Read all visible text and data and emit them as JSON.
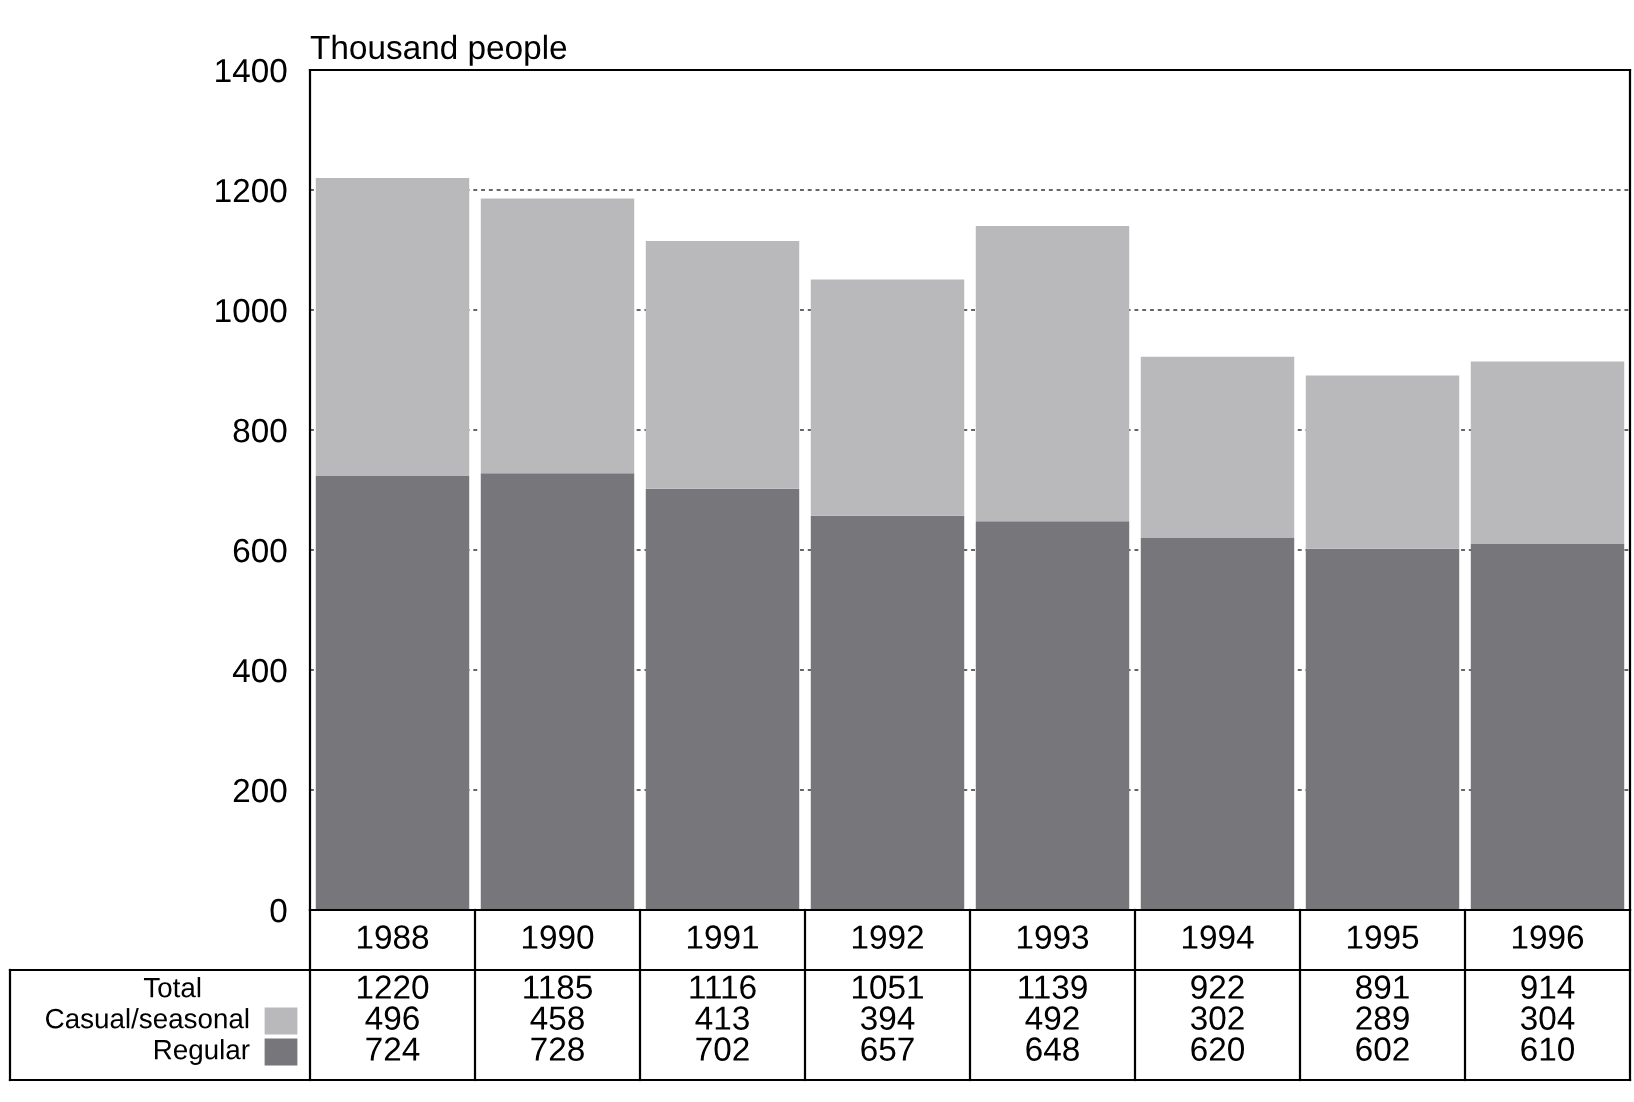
{
  "chart_data": {
    "type": "bar",
    "stacked": true,
    "ylabel": "Thousand people",
    "categories": [
      "1988",
      "1990",
      "1991",
      "1992",
      "1993",
      "1994",
      "1995",
      "1996"
    ],
    "series": [
      {
        "name": "Regular",
        "color": "#77777b",
        "values": [
          724,
          728,
          702,
          657,
          648,
          620,
          602,
          610
        ]
      },
      {
        "name": "Casual/seasonal",
        "color": "#b9b9bc",
        "values": [
          496,
          458,
          413,
          394,
          492,
          302,
          289,
          304
        ]
      }
    ],
    "ylim": [
      0,
      1400
    ],
    "yticks": [
      0,
      200,
      400,
      600,
      800,
      1000,
      1200,
      1400
    ],
    "grid": "y",
    "legend": "bottom left",
    "data_labels": true,
    "totals": [
      "1220",
      "1185",
      "1116",
      "1051",
      "1139",
      "922",
      "891",
      "914"
    ],
    "annotations": [
      "Total"
    ]
  }
}
